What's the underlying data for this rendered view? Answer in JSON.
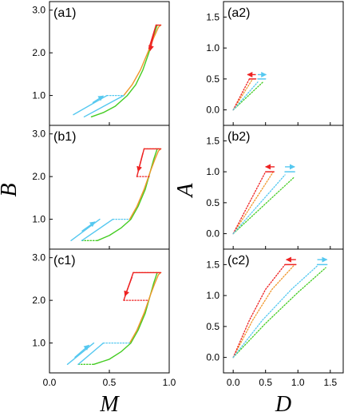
{
  "colors": {
    "green": "#44cc22",
    "orange": "#f0962a",
    "red": "#ee2222",
    "cyan": "#55c8f0",
    "frame": "#000000"
  },
  "axis_titles": {
    "left_x": "M",
    "left_y": "B",
    "right_x": "D",
    "right_y": "A"
  },
  "chart_data": [
    {
      "id": "a1",
      "label": "(a1)",
      "type": "line",
      "xlim": [
        0.0,
        1.0
      ],
      "ylim": [
        0.3,
        3.2
      ],
      "xticks": [
        0.0,
        0.5,
        1.0
      ],
      "xtick_labels": [
        "0.0",
        "0.5",
        "1.0"
      ],
      "yticks": [
        1.0,
        2.0,
        3.0
      ],
      "ytick_labels": [
        "1.0",
        "2.0",
        "3.0"
      ],
      "xticks_labeled": false,
      "series": [
        {
          "color": "green",
          "style": "solid",
          "x": [
            0.35,
            0.45,
            0.55,
            0.65,
            0.72,
            0.78,
            0.83,
            0.87,
            0.9
          ],
          "y": [
            0.5,
            0.6,
            0.75,
            1.0,
            1.25,
            1.6,
            2.0,
            2.4,
            2.65
          ]
        },
        {
          "color": "orange",
          "style": "solid",
          "x": [
            0.62,
            0.69,
            0.76,
            0.82,
            0.87,
            0.91,
            0.93
          ],
          "y": [
            1.0,
            1.25,
            1.6,
            2.0,
            2.35,
            2.6,
            2.65
          ]
        },
        {
          "color": "cyan",
          "style": "solid",
          "x": [
            0.2,
            0.48
          ],
          "y": [
            0.55,
            1.0
          ]
        },
        {
          "color": "cyan",
          "style": "solid",
          "x": [
            0.29,
            0.62
          ],
          "y": [
            0.5,
            1.0
          ]
        },
        {
          "color": "cyan",
          "style": "dotted",
          "x": [
            0.48,
            0.62
          ],
          "y": [
            1.0,
            1.0
          ]
        },
        {
          "color": "red",
          "style": "solid",
          "x": [
            0.83,
            0.89
          ],
          "y": [
            2.1,
            2.65
          ]
        },
        {
          "color": "red",
          "style": "solid",
          "x": [
            0.89,
            0.93
          ],
          "y": [
            2.65,
            2.65
          ]
        }
      ],
      "arrows": [
        {
          "color": "cyan",
          "x1": 0.36,
          "y1": 0.83,
          "x2": 0.45,
          "y2": 0.99
        },
        {
          "color": "red",
          "x1": 0.88,
          "y1": 2.55,
          "x2": 0.84,
          "y2": 2.05
        }
      ]
    },
    {
      "id": "a2",
      "label": "(a2)",
      "type": "line",
      "xlim": [
        -0.15,
        1.7
      ],
      "ylim": [
        -0.25,
        1.75
      ],
      "xticks": [
        0.0,
        0.5,
        1.0,
        1.5
      ],
      "xtick_labels": [
        "0.0",
        "0.5",
        "1.0",
        "1.5"
      ],
      "yticks": [
        0.0,
        0.5,
        1.0,
        1.5
      ],
      "ytick_labels": [
        "0.0",
        "0.5",
        "1.0",
        "1.5"
      ],
      "xticks_labeled": false,
      "series": [
        {
          "color": "green",
          "style": "dotted",
          "x": [
            0.0,
            0.46
          ],
          "y": [
            0.0,
            0.45
          ]
        },
        {
          "color": "orange",
          "style": "dotted",
          "x": [
            0.0,
            0.3
          ],
          "y": [
            0.0,
            0.5
          ]
        },
        {
          "color": "red",
          "style": "dotted",
          "x": [
            0.0,
            0.25
          ],
          "y": [
            0.0,
            0.5
          ]
        },
        {
          "color": "cyan",
          "style": "dotted",
          "x": [
            0.0,
            0.38
          ],
          "y": [
            0.0,
            0.45
          ]
        },
        {
          "color": "red",
          "style": "solid",
          "x": [
            0.25,
            0.35
          ],
          "y": [
            0.5,
            0.5
          ]
        },
        {
          "color": "cyan",
          "style": "solid",
          "x": [
            0.38,
            0.5
          ],
          "y": [
            0.5,
            0.5
          ]
        }
      ],
      "arrows": [
        {
          "color": "red",
          "x1": 0.35,
          "y1": 0.57,
          "x2": 0.22,
          "y2": 0.57
        },
        {
          "color": "cyan",
          "x1": 0.38,
          "y1": 0.57,
          "x2": 0.51,
          "y2": 0.57
        }
      ]
    },
    {
      "id": "b1",
      "label": "(b1)",
      "type": "line",
      "xlim": [
        0.0,
        1.0
      ],
      "ylim": [
        0.3,
        3.2
      ],
      "xticks": [
        0.0,
        0.5,
        1.0
      ],
      "xtick_labels": [
        "0.0",
        "0.5",
        "1.0"
      ],
      "yticks": [
        1.0,
        2.0,
        3.0
      ],
      "ytick_labels": [
        "1.0",
        "2.0",
        "3.0"
      ],
      "xticks_labeled": false,
      "series": [
        {
          "color": "green",
          "style": "solid",
          "x": [
            0.4,
            0.5,
            0.6,
            0.68,
            0.74,
            0.8,
            0.84,
            0.87,
            0.9
          ],
          "y": [
            0.5,
            0.62,
            0.8,
            1.0,
            1.3,
            1.7,
            2.1,
            2.4,
            2.65
          ]
        },
        {
          "color": "green",
          "style": "dotted",
          "x": [
            0.27,
            0.4
          ],
          "y": [
            0.5,
            0.5
          ]
        },
        {
          "color": "orange",
          "style": "solid",
          "x": [
            0.67,
            0.73,
            0.79,
            0.84,
            0.88,
            0.91,
            0.93
          ],
          "y": [
            1.0,
            1.3,
            1.7,
            2.1,
            2.4,
            2.6,
            2.65
          ]
        },
        {
          "color": "orange",
          "style": "dotted",
          "x": [
            0.79,
            0.93
          ],
          "y": [
            2.65,
            2.65
          ]
        },
        {
          "color": "cyan",
          "style": "solid",
          "x": [
            0.18,
            0.42
          ],
          "y": [
            0.5,
            1.0
          ]
        },
        {
          "color": "cyan",
          "style": "solid",
          "x": [
            0.27,
            0.53
          ],
          "y": [
            0.5,
            1.0
          ]
        },
        {
          "color": "cyan",
          "style": "dotted",
          "x": [
            0.53,
            0.67
          ],
          "y": [
            1.0,
            1.0
          ]
        },
        {
          "color": "red",
          "style": "solid",
          "x": [
            0.73,
            0.79
          ],
          "y": [
            2.0,
            2.65
          ]
        },
        {
          "color": "red",
          "style": "solid",
          "x": [
            0.79,
            0.93
          ],
          "y": [
            2.65,
            2.65
          ]
        },
        {
          "color": "red",
          "style": "dotted",
          "x": [
            0.73,
            0.84
          ],
          "y": [
            2.0,
            2.0
          ]
        }
      ],
      "arrows": [
        {
          "color": "cyan",
          "x1": 0.27,
          "y1": 0.72,
          "x2": 0.38,
          "y2": 0.94
        },
        {
          "color": "red",
          "x1": 0.78,
          "y1": 2.55,
          "x2": 0.74,
          "y2": 2.12
        }
      ]
    },
    {
      "id": "b2",
      "label": "(b2)",
      "type": "line",
      "xlim": [
        -0.15,
        1.7
      ],
      "ylim": [
        -0.25,
        1.75
      ],
      "xticks": [
        0.0,
        0.5,
        1.0,
        1.5
      ],
      "xtick_labels": [
        "0.0",
        "0.5",
        "1.0",
        "1.5"
      ],
      "yticks": [
        0.0,
        0.5,
        1.0,
        1.5
      ],
      "ytick_labels": [
        "0.0",
        "0.5",
        "1.0",
        "1.5"
      ],
      "xticks_labeled": false,
      "series": [
        {
          "color": "green",
          "style": "dotted",
          "x": [
            0.0,
            0.95
          ],
          "y": [
            0.0,
            0.92
          ]
        },
        {
          "color": "orange",
          "style": "dotted",
          "x": [
            0.0,
            0.62
          ],
          "y": [
            0.0,
            1.0
          ]
        },
        {
          "color": "red",
          "style": "dotted",
          "x": [
            0.0,
            0.5
          ],
          "y": [
            0.0,
            1.0
          ]
        },
        {
          "color": "cyan",
          "style": "dotted",
          "x": [
            0.0,
            0.8
          ],
          "y": [
            0.0,
            0.95
          ]
        },
        {
          "color": "red",
          "style": "solid",
          "x": [
            0.5,
            0.63
          ],
          "y": [
            1.0,
            1.0
          ]
        },
        {
          "color": "cyan",
          "style": "solid",
          "x": [
            0.8,
            0.95
          ],
          "y": [
            1.0,
            1.0
          ]
        }
      ],
      "arrows": [
        {
          "color": "red",
          "x1": 0.64,
          "y1": 1.08,
          "x2": 0.5,
          "y2": 1.08
        },
        {
          "color": "cyan",
          "x1": 0.8,
          "y1": 1.08,
          "x2": 0.95,
          "y2": 1.08
        }
      ]
    },
    {
      "id": "c1",
      "label": "(c1)",
      "type": "line",
      "xlim": [
        0.0,
        1.0
      ],
      "ylim": [
        0.3,
        3.2
      ],
      "xticks": [
        0.0,
        0.5,
        1.0
      ],
      "xtick_labels": [
        "0.0",
        "0.5",
        "1.0"
      ],
      "yticks": [
        1.0,
        2.0,
        3.0
      ],
      "ytick_labels": [
        "1.0",
        "2.0",
        "3.0"
      ],
      "xticks_labeled": true,
      "series": [
        {
          "color": "green",
          "style": "solid",
          "x": [
            0.37,
            0.5,
            0.6,
            0.68,
            0.74,
            0.8,
            0.84,
            0.87,
            0.9
          ],
          "y": [
            0.5,
            0.62,
            0.8,
            1.0,
            1.3,
            1.7,
            2.1,
            2.4,
            2.65
          ]
        },
        {
          "color": "green",
          "style": "dotted",
          "x": [
            0.24,
            0.37
          ],
          "y": [
            0.5,
            0.5
          ]
        },
        {
          "color": "orange",
          "style": "solid",
          "x": [
            0.67,
            0.73,
            0.79,
            0.84,
            0.88,
            0.91,
            0.93
          ],
          "y": [
            1.0,
            1.3,
            1.7,
            2.1,
            2.4,
            2.6,
            2.65
          ]
        },
        {
          "color": "orange",
          "style": "dotted",
          "x": [
            0.7,
            0.93
          ],
          "y": [
            2.65,
            2.65
          ]
        },
        {
          "color": "cyan",
          "style": "solid",
          "x": [
            0.15,
            0.37
          ],
          "y": [
            0.5,
            1.0
          ]
        },
        {
          "color": "cyan",
          "style": "solid",
          "x": [
            0.24,
            0.45
          ],
          "y": [
            0.5,
            1.0
          ]
        },
        {
          "color": "cyan",
          "style": "dotted",
          "x": [
            0.45,
            0.67
          ],
          "y": [
            1.0,
            1.0
          ]
        },
        {
          "color": "red",
          "style": "solid",
          "x": [
            0.62,
            0.7
          ],
          "y": [
            2.0,
            2.65
          ]
        },
        {
          "color": "red",
          "style": "solid",
          "x": [
            0.7,
            0.93
          ],
          "y": [
            2.65,
            2.65
          ]
        },
        {
          "color": "red",
          "style": "dotted",
          "x": [
            0.62,
            0.83
          ],
          "y": [
            2.0,
            2.0
          ]
        }
      ],
      "arrows": [
        {
          "color": "cyan",
          "x1": 0.21,
          "y1": 0.66,
          "x2": 0.33,
          "y2": 0.95
        },
        {
          "color": "red",
          "x1": 0.69,
          "y1": 2.55,
          "x2": 0.63,
          "y2": 2.1
        }
      ]
    },
    {
      "id": "c2",
      "label": "(c2)",
      "type": "line",
      "xlim": [
        -0.15,
        1.7
      ],
      "ylim": [
        -0.25,
        1.75
      ],
      "xticks": [
        0.0,
        0.5,
        1.0,
        1.5
      ],
      "xtick_labels": [
        "0.0",
        "0.5",
        "1.0",
        "1.5"
      ],
      "yticks": [
        0.0,
        0.5,
        1.0,
        1.5
      ],
      "ytick_labels": [
        "0.0",
        "0.5",
        "1.0",
        "1.5"
      ],
      "xticks_labeled": true,
      "series": [
        {
          "color": "green",
          "style": "dotted",
          "x": [
            0.0,
            0.5,
            1.0,
            1.43
          ],
          "y": [
            0.0,
            0.55,
            1.05,
            1.45
          ]
        },
        {
          "color": "orange",
          "style": "dotted",
          "x": [
            0.0,
            0.3,
            0.6,
            0.95
          ],
          "y": [
            0.0,
            0.6,
            1.1,
            1.5
          ]
        },
        {
          "color": "red",
          "style": "dotted",
          "x": [
            0.0,
            0.25,
            0.5,
            0.8
          ],
          "y": [
            0.0,
            0.6,
            1.1,
            1.5
          ]
        },
        {
          "color": "cyan",
          "style": "dotted",
          "x": [
            0.0,
            0.45,
            0.9,
            1.3
          ],
          "y": [
            0.0,
            0.6,
            1.1,
            1.48
          ]
        },
        {
          "color": "red",
          "style": "solid",
          "x": [
            0.8,
            0.97
          ],
          "y": [
            1.5,
            1.5
          ]
        },
        {
          "color": "cyan",
          "style": "solid",
          "x": [
            1.3,
            1.45
          ],
          "y": [
            1.5,
            1.5
          ]
        }
      ],
      "arrows": [
        {
          "color": "red",
          "x1": 0.97,
          "y1": 1.58,
          "x2": 0.82,
          "y2": 1.58
        },
        {
          "color": "cyan",
          "x1": 1.3,
          "y1": 1.58,
          "x2": 1.45,
          "y2": 1.58
        }
      ]
    }
  ]
}
